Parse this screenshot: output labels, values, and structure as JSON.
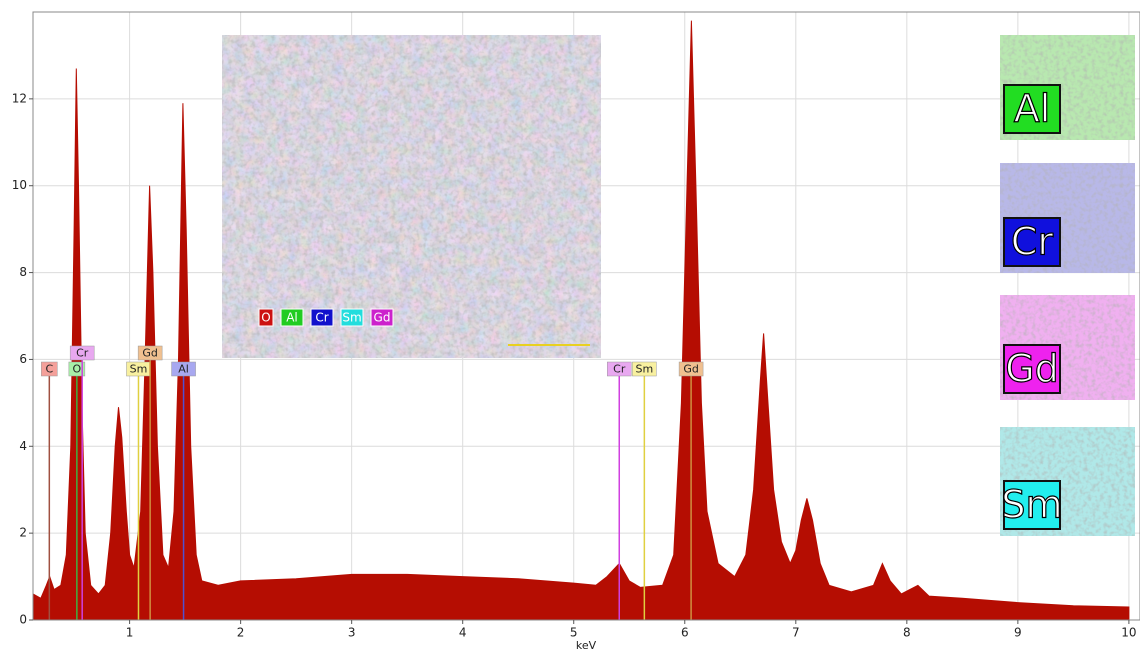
{
  "chart_data": {
    "type": "area",
    "x_label": "keV",
    "color": "#b50d02",
    "xlim": [
      0.13,
      10.1
    ],
    "ylim": [
      0,
      14
    ],
    "xticks": [
      1,
      2,
      3,
      4,
      5,
      6,
      7,
      8,
      9,
      10
    ],
    "yticks": [
      0,
      2,
      4,
      6,
      8,
      10,
      12
    ],
    "grid": true,
    "x": [
      0.13,
      0.2,
      0.25,
      0.28,
      0.32,
      0.38,
      0.43,
      0.47,
      0.5,
      0.52,
      0.54,
      0.57,
      0.6,
      0.65,
      0.72,
      0.78,
      0.83,
      0.87,
      0.9,
      0.93,
      0.97,
      1.0,
      1.04,
      1.1,
      1.14,
      1.18,
      1.21,
      1.25,
      1.3,
      1.35,
      1.4,
      1.44,
      1.48,
      1.51,
      1.55,
      1.6,
      1.65,
      1.8,
      2.0,
      2.5,
      3.0,
      3.5,
      4.0,
      4.5,
      5.0,
      5.2,
      5.3,
      5.41,
      5.5,
      5.6,
      5.8,
      5.9,
      5.97,
      6.02,
      6.06,
      6.1,
      6.15,
      6.2,
      6.3,
      6.45,
      6.55,
      6.62,
      6.68,
      6.71,
      6.75,
      6.8,
      6.87,
      6.95,
      7.0,
      7.05,
      7.1,
      7.15,
      7.22,
      7.3,
      7.5,
      7.7,
      7.78,
      7.85,
      7.95,
      8.1,
      8.2,
      8.5,
      9.0,
      9.5,
      10.0
    ],
    "values": [
      0.6,
      0.5,
      0.8,
      1.0,
      0.7,
      0.8,
      1.5,
      4,
      9,
      12.7,
      10,
      5,
      2,
      0.8,
      0.6,
      0.8,
      2,
      4,
      4.9,
      4.2,
      2.5,
      1.5,
      1.2,
      2.5,
      6,
      10,
      8,
      4,
      1.5,
      1.2,
      2.5,
      6,
      11.9,
      9,
      4,
      1.5,
      0.9,
      0.8,
      0.9,
      0.95,
      1.05,
      1.05,
      1.0,
      0.95,
      0.85,
      0.8,
      1.0,
      1.3,
      0.9,
      0.75,
      0.8,
      1.5,
      5,
      10,
      13.8,
      10,
      5,
      2.5,
      1.3,
      1.0,
      1.5,
      3,
      5.5,
      6.6,
      5,
      3,
      1.8,
      1.3,
      1.6,
      2.3,
      2.8,
      2.3,
      1.3,
      0.8,
      0.65,
      0.8,
      1.3,
      0.9,
      0.6,
      0.8,
      0.55,
      0.5,
      0.4,
      0.33,
      0.3
    ],
    "markers": [
      {
        "label": "C",
        "energy": 0.277,
        "color": "#f4a09a",
        "line_color": "#a05040"
      },
      {
        "label": "O",
        "energy": 0.525,
        "color": "#a8f0a8",
        "line_color": "#40b040"
      },
      {
        "label": "Cr",
        "energy": 0.573,
        "color": "#e8a8f0",
        "line_color": "#d040e0"
      },
      {
        "label": "Sm",
        "energy": 1.08,
        "color": "#f8f0a0",
        "line_color": "#e0d040"
      },
      {
        "label": "Gd",
        "energy": 1.185,
        "color": "#f0c090",
        "line_color": "#d09040"
      },
      {
        "label": "Al",
        "energy": 1.486,
        "color": "#a8a8f0",
        "line_color": "#5050d0"
      },
      {
        "label": "Cr",
        "energy": 5.41,
        "color": "#e8a8f0",
        "line_color": "#d040e0"
      },
      {
        "label": "Sm",
        "energy": 5.636,
        "color": "#f8f0a0",
        "line_color": "#e0d040"
      },
      {
        "label": "Gd",
        "energy": 6.057,
        "color": "#f0c090",
        "line_color": "#d09040"
      }
    ],
    "inset_legend": [
      {
        "label": "O",
        "color": "#cc1111"
      },
      {
        "label": "Al",
        "color": "#22cc22"
      },
      {
        "label": "Cr",
        "color": "#1111cc"
      },
      {
        "label": "Sm",
        "color": "#22dddd"
      },
      {
        "label": "Gd",
        "color": "#cc22cc"
      }
    ],
    "maps": [
      {
        "label": "Al",
        "color": "#22dd22",
        "tint": "#b8e8b0"
      },
      {
        "label": "Cr",
        "color": "#1010dd",
        "tint": "#b8b8e8"
      },
      {
        "label": "Gd",
        "color": "#ee22ee",
        "tint": "#f0b0f0"
      },
      {
        "label": "Sm",
        "color": "#22eeee",
        "tint": "#b0e8e8"
      }
    ]
  }
}
